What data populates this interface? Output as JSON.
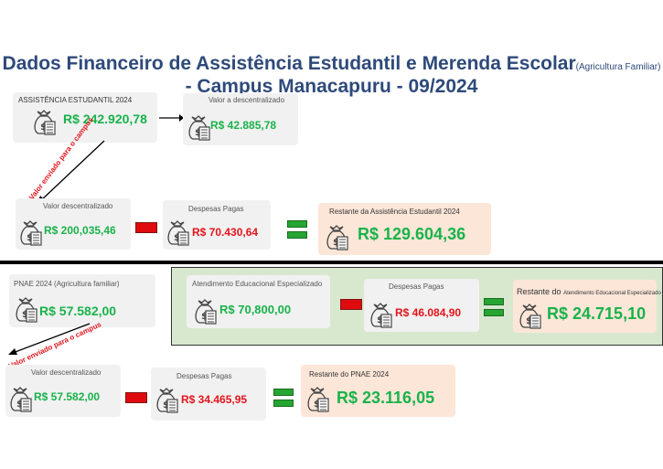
{
  "title": {
    "line1": "Dados Financeiro de Assistência Estudantil e Merenda Escolar",
    "line1_small": "(Agricultura Familiar)",
    "line2": "- Campus Manacapuru - 09/2024"
  },
  "assistencia": {
    "total_label": "ASSISTÊNCIA ESTUDANTIL 2024",
    "total_value": "R$  242.920,78",
    "a_desc_label": "Valor a descentralizado",
    "a_desc_value": "R$  42.885,78",
    "sent_note": "Valor enviado para o campus",
    "desc_label": "Valor descentralizado",
    "desc_value": "R$  200,035,46",
    "despesas_label": "Despesas Pagas",
    "despesas_value": "R$ 70.430,64",
    "restante_label": "Restante da Assistência Estudantil 2024",
    "restante_value": "R$  129.604,36"
  },
  "aee": {
    "label": "Atendimento Educacional Especializado",
    "value": "R$ 70,800,00",
    "despesas_label": "Despesas Pagas",
    "despesas_value": "R$ 46.084,90",
    "restante_label": "Restante do",
    "restante_small": "Atendimento Educacional Especializado",
    "restante_value": "R$ 24.715,10"
  },
  "pnae": {
    "total_label": "PNAE 2024 (Agricultura familiar)",
    "total_value": "R$ 57.582,00",
    "sent_note": "Valor enviado para o campus",
    "desc_label": "Valor descentralizado",
    "desc_value": "R$ 57.582,00",
    "despesas_label": "Despesas Pagas",
    "despesas_value": "R$ 34.465,95",
    "restante_label": "Restante do PNAE 2024",
    "restante_value": "R$ 23.116,05"
  }
}
